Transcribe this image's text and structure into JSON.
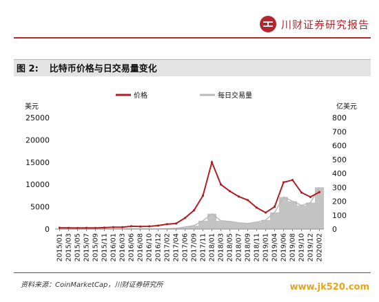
{
  "header": {
    "brand": "川财证券研究报告"
  },
  "figure": {
    "number": "图 2:",
    "title": "比特币价格与日交易量变化"
  },
  "footer": {
    "source": "资料来源：CoinMarketCap，川财证券研究所",
    "watermark": "www.jk520.com"
  },
  "colors": {
    "accent": "#b3262d",
    "price": "#b01e24",
    "volume": "#b8b8b8"
  },
  "chart_data": {
    "type": "line",
    "left_axis": {
      "unit": "美元",
      "range": [
        0,
        25000
      ],
      "ticks": [
        "0",
        "5000",
        "10000",
        "15000",
        "20000",
        "25000"
      ]
    },
    "right_axis": {
      "unit": "亿美元",
      "range": [
        0,
        800
      ],
      "ticks": [
        "0",
        "100",
        "200",
        "300",
        "400",
        "500",
        "600",
        "700",
        "800"
      ]
    },
    "x": [
      "2015/01",
      "2015/03",
      "2015/05",
      "2015/07",
      "2015/09",
      "2015/11",
      "2016/01",
      "2016/03",
      "2016/06",
      "2016/08",
      "2016/10",
      "2016/12",
      "2017/02",
      "2017/04",
      "2017/06",
      "2017/09",
      "2017/11",
      "2018/01",
      "2018/03",
      "2018/05",
      "2018/07",
      "2018/09",
      "2018/11",
      "2019/01",
      "2019/04",
      "2019/06",
      "2019/08",
      "2019/10",
      "2019/12",
      "2020/02"
    ],
    "legend": {
      "placement": "top-center"
    },
    "series": [
      {
        "name": "价格",
        "axis": "left",
        "style": "line",
        "values": [
          290,
          260,
          240,
          270,
          240,
          330,
          420,
          420,
          640,
          580,
          620,
          780,
          1100,
          1250,
          2500,
          4200,
          7500,
          15000,
          10000,
          8500,
          7300,
          6500,
          4800,
          3700,
          5000,
          10500,
          11000,
          8200,
          7200,
          8300
        ]
      },
      {
        "name": "每日交易量",
        "axis": "right",
        "style": "band",
        "values": [
          0.5,
          0.5,
          0.4,
          0.5,
          0.4,
          0.6,
          0.8,
          0.8,
          1.2,
          1.1,
          1.1,
          2,
          3,
          5,
          15,
          25,
          60,
          110,
          60,
          55,
          45,
          40,
          50,
          65,
          120,
          230,
          200,
          170,
          190,
          300
        ]
      }
    ]
  }
}
